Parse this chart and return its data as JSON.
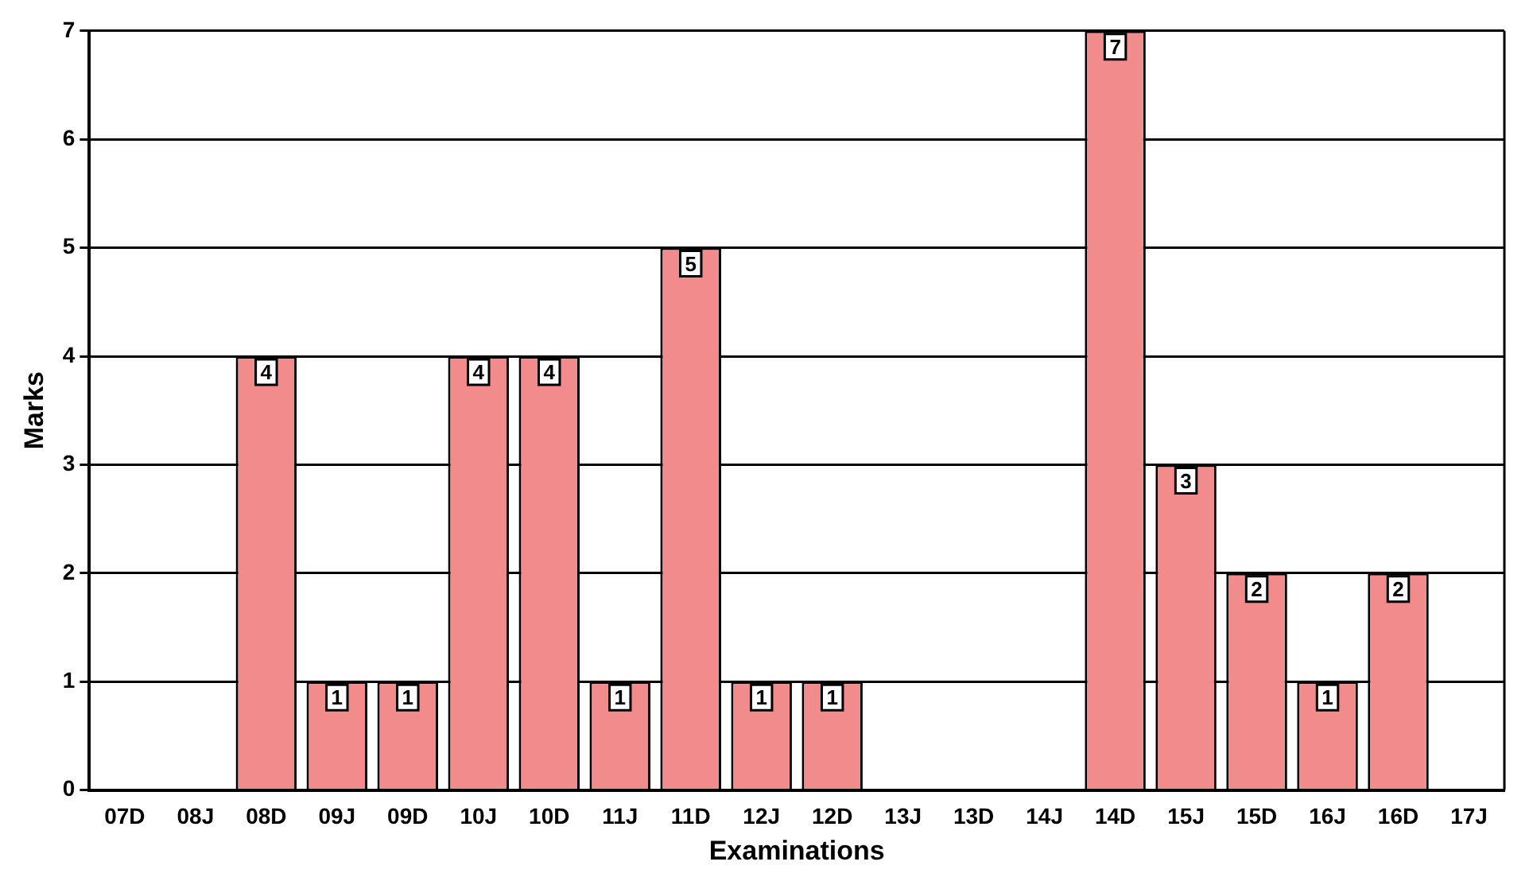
{
  "chart_data": {
    "type": "bar",
    "xlabel": "Examinations",
    "ylabel": "Marks",
    "categories": [
      "07D",
      "08J",
      "08D",
      "09J",
      "09D",
      "10J",
      "10D",
      "11J",
      "11D",
      "12J",
      "12D",
      "13J",
      "13D",
      "14J",
      "14D",
      "15J",
      "15D",
      "16J",
      "16D",
      "17J"
    ],
    "values": [
      0,
      0,
      4,
      1,
      1,
      4,
      4,
      1,
      5,
      1,
      1,
      0,
      0,
      0,
      7,
      3,
      2,
      1,
      2,
      0
    ],
    "value_labels": [
      null,
      null,
      "4",
      "1",
      "1",
      "4",
      "4",
      "1",
      "5",
      "1",
      "1",
      null,
      null,
      null,
      "7",
      "3",
      "2",
      "1",
      "2",
      null
    ],
    "color": "#f28b8b",
    "ylim": [
      0,
      7
    ],
    "yticks": [
      0,
      1,
      2,
      3,
      4,
      5,
      6,
      7
    ],
    "grid": "y",
    "legend": false
  }
}
